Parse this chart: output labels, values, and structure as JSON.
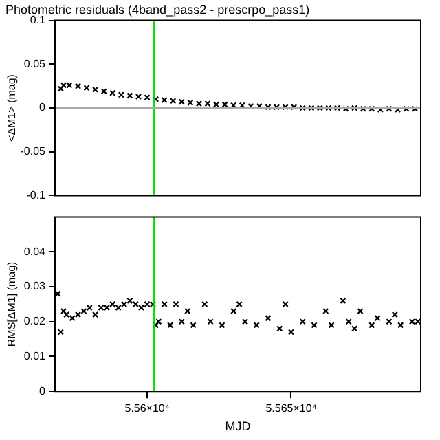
{
  "chart_data": [
    {
      "type": "scatter",
      "title": "Photometric residuals (4band_pass2 - prescrpo_pass1)",
      "ylabel": "<ΔM1> (mag)",
      "xlim": [
        55568,
        55695
      ],
      "ylim": [
        -0.1,
        0.1
      ],
      "yticks": [
        -0.1,
        -0.05,
        0,
        0.05,
        0.1
      ],
      "tick_labels": "y",
      "grid": false,
      "legend": false,
      "marker": "cross",
      "ref_lines": [
        {
          "axis": "x",
          "value": 55602.4,
          "color": "#00dd00"
        },
        {
          "axis": "y",
          "value": 0,
          "color": "#aaaaaa"
        }
      ],
      "series": [
        {
          "color": "#000000",
          "x": [
            55570,
            55571,
            55573,
            55576,
            55579,
            55582,
            55585,
            55588,
            55591,
            55594,
            55597,
            55600,
            55603,
            55606,
            55609,
            55612,
            55615,
            55618,
            55621,
            55624,
            55627,
            55630,
            55633,
            55636,
            55639,
            55642,
            55645,
            55648,
            55651,
            55654,
            55657,
            55660,
            55663,
            55666,
            55669,
            55672,
            55675,
            55678,
            55681,
            55684,
            55687,
            55690,
            55693
          ],
          "values": [
            0.022,
            0.026,
            0.026,
            0.025,
            0.023,
            0.021,
            0.019,
            0.017,
            0.015,
            0.014,
            0.013,
            0.012,
            0.01,
            0.009,
            0.008,
            0.007,
            0.006,
            0.005,
            0.005,
            0.004,
            0.004,
            0.003,
            0.003,
            0.002,
            0.002,
            0.001,
            0.001,
            0.001,
            0.001,
            0.0,
            0.0,
            0.0,
            0.0,
            0.0,
            -0.001,
            0.0,
            -0.001,
            -0.001,
            -0.002,
            -0.001,
            -0.002,
            -0.001,
            -0.001
          ]
        }
      ]
    },
    {
      "type": "scatter",
      "xlabel": "MJD",
      "ylabel": "RMS[ΔM1] (mag)",
      "xlim": [
        55568,
        55695
      ],
      "xticks": [
        {
          "value": 55600,
          "label": "5.56×10⁴"
        },
        {
          "value": 55650,
          "label": "5.565×10⁴"
        }
      ],
      "ylim": [
        0,
        0.05
      ],
      "yticks": [
        0,
        0.01,
        0.02,
        0.03,
        0.04
      ],
      "grid": false,
      "legend": false,
      "marker": "cross",
      "ref_lines": [
        {
          "axis": "x",
          "value": 55602.4,
          "color": "#00dd00"
        }
      ],
      "series": [
        {
          "color": "#000000",
          "x": [
            55569,
            55570,
            55571,
            55572,
            55574,
            55576,
            55578,
            55580,
            55582,
            55584,
            55586,
            55588,
            55590,
            55592,
            55594,
            55596,
            55598,
            55600,
            55602,
            55603,
            55604,
            55606,
            55608,
            55610,
            55612,
            55614,
            55616,
            55620,
            55622,
            55626,
            55630,
            55632,
            55634,
            55638,
            55642,
            55646,
            55648,
            55650,
            55654,
            55658,
            55662,
            55664,
            55668,
            55670,
            55672,
            55674,
            55678,
            55680,
            55684,
            55686,
            55688,
            55692,
            55694
          ],
          "values": [
            0.028,
            0.017,
            0.023,
            0.022,
            0.021,
            0.022,
            0.023,
            0.024,
            0.022,
            0.024,
            0.024,
            0.025,
            0.024,
            0.025,
            0.026,
            0.025,
            0.024,
            0.025,
            0.025,
            0.019,
            0.02,
            0.025,
            0.019,
            0.025,
            0.02,
            0.023,
            0.019,
            0.025,
            0.02,
            0.019,
            0.023,
            0.025,
            0.02,
            0.019,
            0.021,
            0.018,
            0.025,
            0.017,
            0.02,
            0.019,
            0.023,
            0.019,
            0.026,
            0.02,
            0.018,
            0.023,
            0.019,
            0.021,
            0.02,
            0.022,
            0.019,
            0.02,
            0.02
          ]
        }
      ]
    }
  ]
}
